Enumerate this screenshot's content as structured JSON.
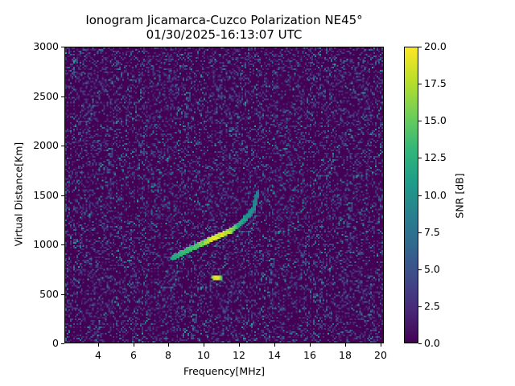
{
  "chart_data": {
    "type": "heatmap",
    "title": "Ionogram Jicamarca-Cuzco Polarization NE45°",
    "subtitle": "01/30/2025-16:13:07 UTC",
    "xlabel": "Frequency[MHz]",
    "ylabel": "Virtual Distance[Km]",
    "xlim": [
      2.1,
      20.2
    ],
    "ylim": [
      0,
      3000
    ],
    "xticks": [
      "4",
      "6",
      "8",
      "10",
      "12",
      "14",
      "16",
      "18",
      "20"
    ],
    "yticks": [
      "0",
      "500",
      "1000",
      "1500",
      "2000",
      "2500",
      "3000"
    ],
    "grid": false,
    "colorbar": {
      "label": "SNR [dB]",
      "colormap": "viridis",
      "range": [
        0.0,
        20.0
      ],
      "ticks": [
        "0.0",
        "2.5",
        "5.0",
        "7.5",
        "10.0",
        "12.5",
        "15.0",
        "17.5",
        "20.0"
      ]
    },
    "background": "random noise, mostly 0-10 dB SNR across all frequencies and distances",
    "traces": [
      {
        "name": "main echo trace",
        "points": [
          {
            "freq": 8.2,
            "km": 860,
            "snr": 12
          },
          {
            "freq": 8.6,
            "km": 890,
            "snr": 13
          },
          {
            "freq": 9.0,
            "km": 930,
            "snr": 14
          },
          {
            "freq": 9.5,
            "km": 970,
            "snr": 15
          },
          {
            "freq": 10.0,
            "km": 1010,
            "snr": 17
          },
          {
            "freq": 10.5,
            "km": 1050,
            "snr": 20
          },
          {
            "freq": 11.0,
            "km": 1090,
            "snr": 20
          },
          {
            "freq": 11.5,
            "km": 1130,
            "snr": 18
          },
          {
            "freq": 12.0,
            "km": 1190,
            "snr": 13
          },
          {
            "freq": 12.5,
            "km": 1270,
            "snr": 11
          },
          {
            "freq": 12.9,
            "km": 1370,
            "snr": 10
          },
          {
            "freq": 13.1,
            "km": 1520,
            "snr": 9
          }
        ]
      },
      {
        "name": "low echo patch",
        "points": [
          {
            "freq": 10.6,
            "km": 650,
            "snr": 18
          },
          {
            "freq": 10.8,
            "km": 650,
            "snr": 20
          },
          {
            "freq": 11.0,
            "km": 645,
            "snr": 14
          }
        ]
      }
    ]
  },
  "labels": {
    "title_line1": "Ionogram Jicamarca-Cuzco Polarization NE45°",
    "title_line2": "01/30/2025-16:13:07 UTC",
    "xlabel": "Frequency[MHz]",
    "ylabel": "Virtual Distance[Km]",
    "cbar_label": "SNR [dB]"
  }
}
